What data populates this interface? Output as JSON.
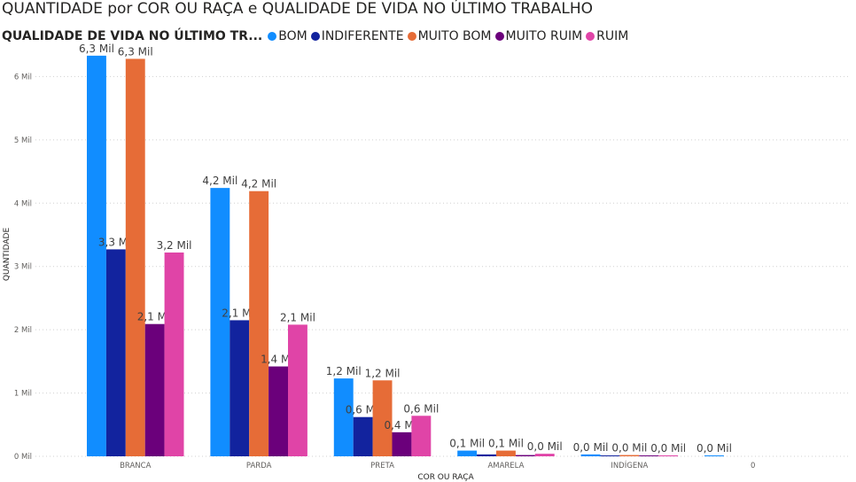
{
  "chart_data": {
    "type": "bar",
    "title": "QUANTIDADE por COR OU RAÇA e QUALIDADE DE VIDA NO ÚLTIMO TRABALHO",
    "legend_title": "QUALIDADE DE VIDA NO ÚLTIMO TR...",
    "legend_position": "top-left",
    "xlabel": "COR OU RAÇA",
    "ylabel": "QUANTIDADE",
    "ylim": [
      0,
      6650
    ],
    "yticks": [
      0,
      1000,
      2000,
      3000,
      4000,
      5000,
      6000
    ],
    "ytick_labels": [
      "0 Mil",
      "1 Mil",
      "2 Mil",
      "3 Mil",
      "4 Mil",
      "5 Mil",
      "6 Mil"
    ],
    "grid": "horizontal dotted",
    "categories": [
      "BRANCA",
      "PARDA",
      "PRETA",
      "AMARELA",
      "INDÍGENA",
      "0"
    ],
    "series": [
      {
        "name": "BOM",
        "color": "#118DFF",
        "values": [
          6330,
          4240,
          1230,
          90,
          30,
          10
        ],
        "labels": [
          "6,3 Mil",
          "4,2 Mil",
          "1,2 Mil",
          "0,1 Mil",
          "0,0 Mil",
          "0,0 Mil"
        ]
      },
      {
        "name": "INDIFERENTE",
        "color": "#12239E",
        "values": [
          3270,
          2150,
          620,
          30,
          10,
          null
        ],
        "labels": [
          "3,3 Mil",
          "2,1 Mil",
          "0,6 Mil",
          null,
          null,
          null
        ]
      },
      {
        "name": "MUITO BOM",
        "color": "#E66C37",
        "values": [
          6280,
          4190,
          1200,
          90,
          20,
          null
        ],
        "labels": [
          "6,3 Mil",
          "4,2 Mil",
          "1,2 Mil",
          "0,1 Mil",
          "0,0 Mil",
          null
        ]
      },
      {
        "name": "MUITO RUIM",
        "color": "#6B007B",
        "values": [
          2090,
          1420,
          380,
          20,
          10,
          null
        ],
        "labels": [
          "2,1 Mil",
          "1,4 Mil",
          "0,4 Mil",
          null,
          null,
          null
        ]
      },
      {
        "name": "RUIM",
        "color": "#E044A7",
        "values": [
          3220,
          2080,
          640,
          40,
          10,
          null
        ],
        "labels": [
          "3,2 Mil",
          "2,1 Mil",
          "0,6 Mil",
          "0,0 Mil",
          "0,0 Mil",
          null
        ]
      }
    ]
  }
}
